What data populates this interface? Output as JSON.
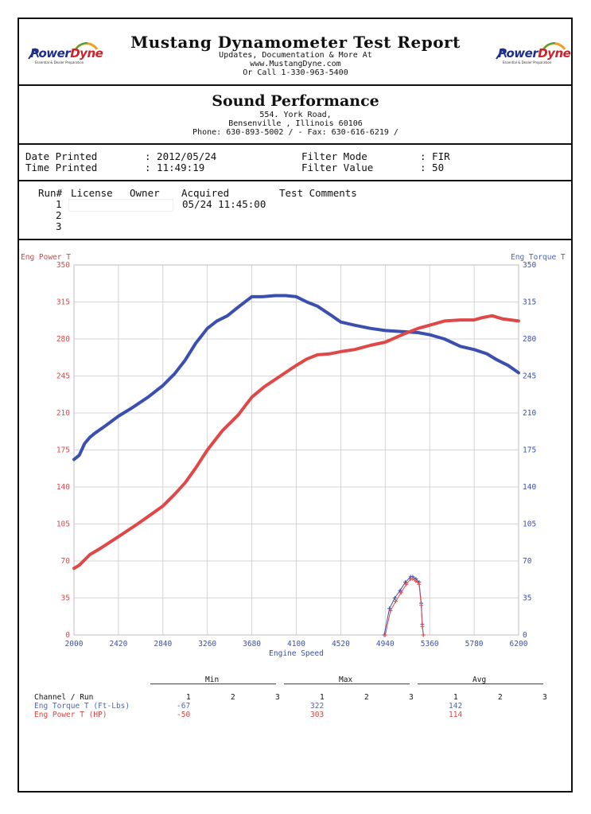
{
  "header": {
    "title": "Mustang Dynamometer Test Report",
    "line1": "Updates, Documentation & More At",
    "line2": "www.MustangDyne.com",
    "line3": "Or Call 1-330-963-5400",
    "logo_text_a": "Power",
    "logo_text_b": "Dyne",
    "logo_tagline": "Essential & Dealer Preparation"
  },
  "shop": {
    "name": "Sound Performance",
    "address1": "554. York Road,",
    "address2": "Bensenville , Illinois  60106",
    "phone": "Phone: 630-893-5002 /  - Fax: 630-616-6219 /"
  },
  "info": {
    "date_label": "Date Printed",
    "date_value": ": 2012/05/24",
    "time_label": "Time Printed",
    "time_value": ": 11:49:19",
    "filter_mode_label": "Filter Mode",
    "filter_mode_value": ": FIR",
    "filter_value_label": "Filter Value",
    "filter_value_value": ": 50"
  },
  "runs": {
    "headers": [
      "Run#",
      "License",
      "Owner",
      "Acquired",
      "Test Comments"
    ],
    "numbers": [
      "1",
      "2",
      "3"
    ],
    "acquired_1": "05/24 11:45:00"
  },
  "summary": {
    "min_label": "Min",
    "max_label": "Max",
    "avg_label": "Avg",
    "channel_run_label": "Channel / Run",
    "run_numbers": [
      "1",
      "2",
      "3"
    ],
    "torque_label": "Eng Torque T (Ft-Lbs)",
    "power_label": "Eng Power T (HP)",
    "torque_min": "-67",
    "torque_max": "322",
    "torque_avg": "142",
    "power_min": "-50",
    "power_max": "303",
    "power_avg": "114"
  },
  "colors": {
    "torque": "#3b4fb0",
    "power": "#e04848",
    "grid": "#c8c8c8"
  },
  "chart_data": {
    "type": "line",
    "xlabel": "Engine Speed",
    "ylabel_left": "Eng Power T",
    "ylabel_right": "Eng Torque T",
    "xlim": [
      2000,
      6200
    ],
    "ylim": [
      0,
      350
    ],
    "x_ticks": [
      "2000",
      "2420",
      "2840",
      "3260",
      "3680",
      "4100",
      "4520",
      "4940",
      "5360",
      "5780",
      "6200"
    ],
    "y_ticks": [
      "0",
      "35",
      "70",
      "105",
      "140",
      "175",
      "210",
      "245",
      "280",
      "315",
      "350"
    ],
    "grid": true,
    "series": [
      {
        "name": "Eng Torque T",
        "axis": "right",
        "x": [
          2000,
          2050,
          2100,
          2150,
          2200,
          2300,
          2420,
          2550,
          2700,
          2840,
          2950,
          3050,
          3150,
          3260,
          3350,
          3450,
          3550,
          3680,
          3780,
          3900,
          4000,
          4100,
          4200,
          4300,
          4420,
          4520,
          4650,
          4800,
          4940,
          5100,
          5250,
          5360,
          5500,
          5650,
          5780,
          5900,
          6000,
          6100,
          6200
        ],
        "values": [
          166,
          170,
          181,
          187,
          191,
          198,
          207,
          215,
          225,
          236,
          247,
          260,
          276,
          290,
          297,
          302,
          310,
          320,
          320,
          321,
          321,
          320,
          315,
          311,
          303,
          296,
          293,
          290,
          288,
          287,
          286,
          284,
          280,
          273,
          270,
          266,
          260,
          255,
          248
        ]
      },
      {
        "name": "Eng Power T",
        "axis": "left",
        "x": [
          2000,
          2050,
          2150,
          2250,
          2420,
          2600,
          2700,
          2840,
          2950,
          3050,
          3150,
          3260,
          3400,
          3550,
          3680,
          3800,
          3950,
          4100,
          4200,
          4300,
          4420,
          4520,
          4650,
          4800,
          4940,
          5100,
          5250,
          5360,
          5500,
          5650,
          5780,
          5850,
          5950,
          6050,
          6200
        ],
        "values": [
          63,
          66,
          76,
          82,
          93,
          105,
          112,
          122,
          133,
          144,
          158,
          175,
          193,
          208,
          225,
          235,
          245,
          255,
          261,
          265,
          266,
          268,
          270,
          274,
          277,
          284,
          290,
          293,
          297,
          298,
          298,
          300,
          302,
          299,
          297
        ]
      },
      {
        "name": "Eng Torque T",
        "axis": "right",
        "style": "markers",
        "x": [
          4930,
          4980,
          5030,
          5080,
          5130,
          5180,
          5200,
          5230,
          5260,
          5280,
          5290,
          5300
        ],
        "values": [
          0,
          25,
          35,
          42,
          50,
          55,
          55,
          53,
          50,
          30,
          10,
          0
        ]
      },
      {
        "name": "Eng Power T",
        "axis": "left",
        "style": "markers",
        "x": [
          4940,
          4990,
          5040,
          5090,
          5140,
          5180,
          5200,
          5230,
          5260,
          5280,
          5290,
          5300
        ],
        "values": [
          0,
          23,
          32,
          40,
          48,
          53,
          53,
          51,
          48,
          28,
          8,
          0
        ]
      }
    ]
  }
}
